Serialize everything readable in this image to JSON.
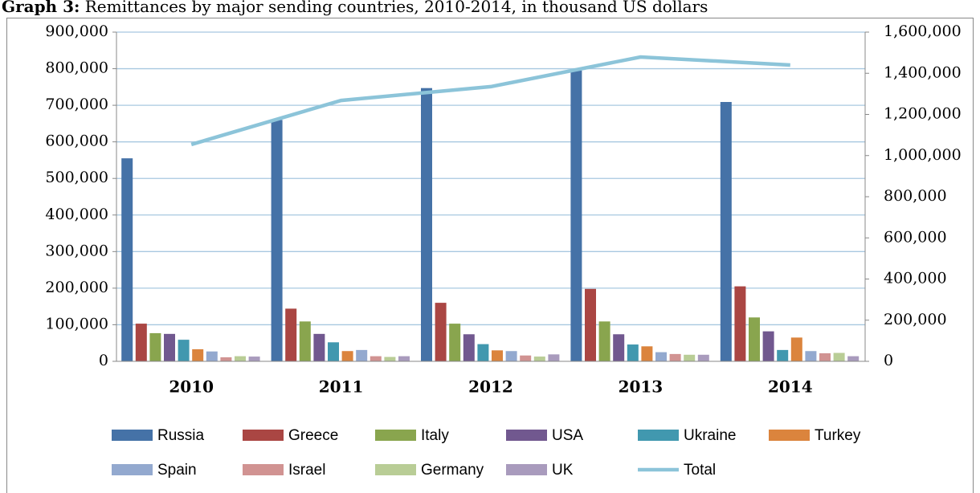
{
  "chart_data": {
    "type": "bar",
    "title_label": "Graph 3:",
    "title": "Remittances by major sending countries, 2010-2014, in thousand US dollars",
    "categories": [
      "2010",
      "2011",
      "2012",
      "2013",
      "2014"
    ],
    "ylim": [
      0,
      900000
    ],
    "yticks": [
      0,
      {
        "value": 100000,
        "label": "100,000"
      },
      {
        "value": 200000,
        "label": "200,000"
      },
      {
        "value": 300000,
        "label": "300,000"
      },
      {
        "value": 400000,
        "label": "400,000"
      },
      {
        "value": 500000,
        "label": "500,000"
      },
      {
        "value": 600000,
        "label": "600,000"
      },
      {
        "value": 700000,
        "label": "700,000"
      },
      {
        "value": 800000,
        "label": "800,000"
      },
      {
        "value": 900000,
        "label": "900,000"
      }
    ],
    "y2lim": [
      0,
      1600000
    ],
    "y2ticks": [
      0,
      {
        "value": 200000,
        "label": "200,000"
      },
      {
        "value": 400000,
        "label": "400,000"
      },
      {
        "value": 600000,
        "label": "600,000"
      },
      {
        "value": 800000,
        "label": "800,000"
      },
      {
        "value": 1000000,
        "label": "1,000,000"
      },
      {
        "value": 1200000,
        "label": "1,200,000"
      },
      {
        "value": 1400000,
        "label": "1,400,000"
      },
      {
        "value": 1600000,
        "label": "1,600,000"
      }
    ],
    "grid": true,
    "legend": "bottom",
    "series": [
      {
        "name": "Russia",
        "color": "#4572a7",
        "values": [
          555000,
          660000,
          747000,
          795000,
          709000
        ]
      },
      {
        "name": "Greece",
        "color": "#aa4643",
        "values": [
          103000,
          144000,
          160000,
          198000,
          205000
        ]
      },
      {
        "name": "Italy",
        "color": "#89a54e",
        "values": [
          77000,
          109000,
          103000,
          109000,
          120000
        ]
      },
      {
        "name": "USA",
        "color": "#71588f",
        "values": [
          75000,
          75000,
          74000,
          74000,
          82000
        ]
      },
      {
        "name": "Ukraine",
        "color": "#4198af",
        "values": [
          59000,
          52000,
          47000,
          46000,
          31000
        ]
      },
      {
        "name": "Turkey",
        "color": "#db843d",
        "values": [
          33000,
          28000,
          30000,
          41000,
          65000
        ]
      },
      {
        "name": "Spain",
        "color": "#93a9cf",
        "values": [
          27000,
          31000,
          28000,
          25000,
          28000
        ]
      },
      {
        "name": "Israel",
        "color": "#d19392",
        "values": [
          11000,
          14000,
          16000,
          20000,
          22000
        ]
      },
      {
        "name": "Germany",
        "color": "#b9cd96",
        "values": [
          14000,
          12000,
          13000,
          18000,
          23000
        ]
      },
      {
        "name": "UK",
        "color": "#a99bbd",
        "values": [
          13000,
          14000,
          19000,
          18000,
          14000
        ]
      },
      {
        "name": "Total",
        "color": "#8cc4d9",
        "type": "line",
        "axis": "y2",
        "values": [
          1054000,
          1268000,
          1335000,
          1479000,
          1440000
        ]
      }
    ]
  }
}
